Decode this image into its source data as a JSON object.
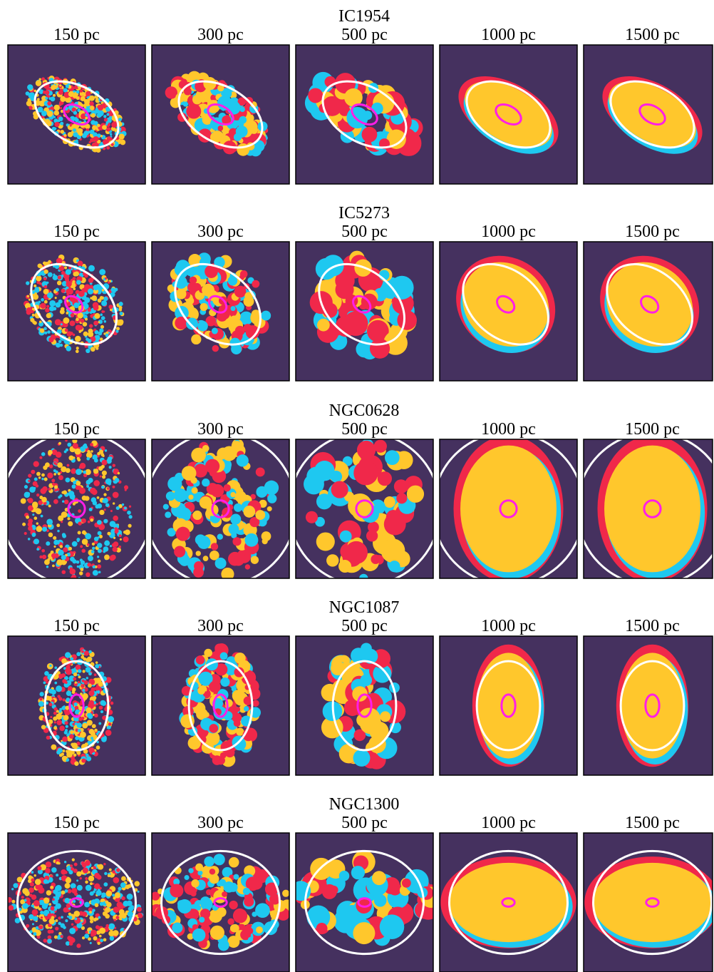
{
  "rows": [
    {
      "title": "IC1954",
      "panels": [
        "150 pc",
        "300 pc",
        "500 pc",
        "1000 pc",
        "1500 pc"
      ]
    },
    {
      "title": "IC5273",
      "panels": [
        "150 pc",
        "300 pc",
        "500 pc",
        "1000 pc",
        "1500 pc"
      ]
    },
    {
      "title": "NGC0628",
      "panels": [
        "150 pc",
        "300 pc",
        "500 pc",
        "1000 pc",
        "1500 pc"
      ]
    },
    {
      "title": "NGC1087",
      "panels": [
        "150 pc",
        "300 pc",
        "500 pc",
        "1000 pc",
        "1500 pc"
      ]
    },
    {
      "title": "NGC1300",
      "panels": [
        "150 pc",
        "300 pc",
        "500 pc",
        "1000 pc",
        "1500 pc"
      ]
    }
  ]
}
